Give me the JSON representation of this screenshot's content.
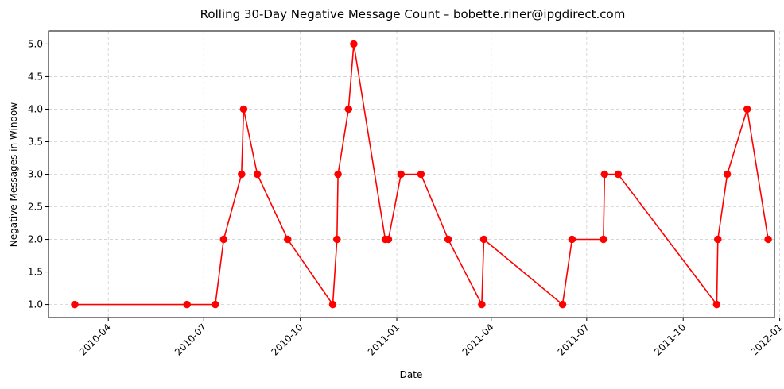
{
  "chart_data": {
    "type": "line",
    "title": "Rolling 30-Day Negative Message Count – bobette.riner@ipgdirect.com",
    "xlabel": "Date",
    "ylabel": "Negative Messages in Window",
    "x_ticks": [
      "2010-04",
      "2010-07",
      "2010-10",
      "2011-01",
      "2011-04",
      "2011-07",
      "2011-10",
      "2012-01"
    ],
    "y_ticks": [
      "1.0",
      "1.5",
      "2.0",
      "2.5",
      "3.0",
      "3.5",
      "4.0",
      "4.5",
      "5.0"
    ],
    "xlim": [
      "2010-02-03",
      "2011-12-27"
    ],
    "ylim": [
      0.8,
      5.2
    ],
    "grid": true,
    "line_color": "#ff0000",
    "marker": "circle",
    "series": [
      {
        "x": [
          "2010-02-28",
          "2010-06-15",
          "2010-07-12",
          "2010-07-20",
          "2010-08-06",
          "2010-08-08",
          "2010-08-21",
          "2010-09-19",
          "2010-11-01",
          "2010-11-05",
          "2010-11-06",
          "2010-11-16",
          "2010-11-21",
          "2010-12-21",
          "2010-12-24",
          "2011-01-05",
          "2011-01-24",
          "2011-02-19",
          "2011-03-23",
          "2011-03-25",
          "2011-06-08",
          "2011-06-17",
          "2011-07-17",
          "2011-07-18",
          "2011-07-31",
          "2011-11-02",
          "2011-11-03",
          "2011-11-12",
          "2011-12-01",
          "2011-12-21"
        ],
        "values": [
          1,
          1,
          1,
          2,
          3,
          4,
          3,
          2,
          1,
          2,
          3,
          4,
          5,
          2,
          2,
          3,
          3,
          2,
          1,
          2,
          1,
          2,
          2,
          3,
          3,
          1,
          2,
          3,
          4,
          2
        ]
      }
    ]
  }
}
